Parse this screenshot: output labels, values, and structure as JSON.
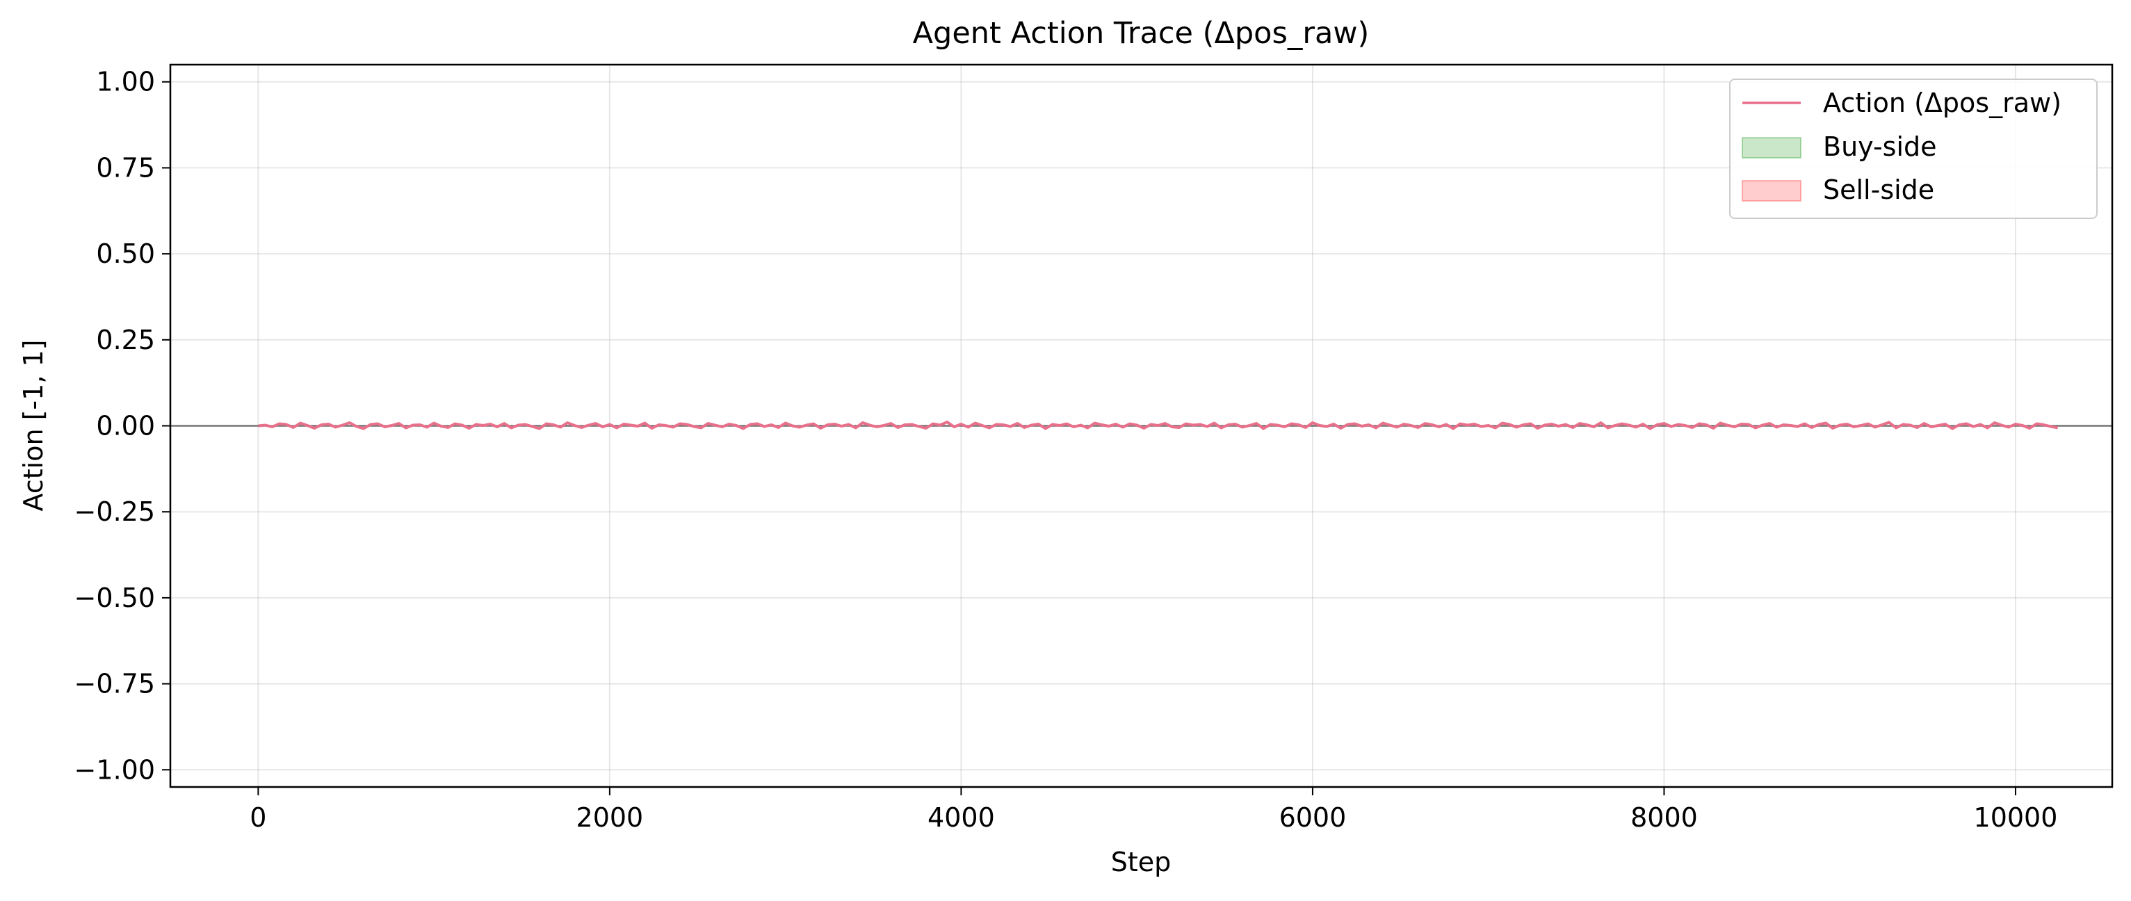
{
  "chart_data": {
    "type": "line",
    "title": "Agent Action Trace (Δpos_raw)",
    "xlabel": "Step",
    "ylabel": "Action [-1, 1]",
    "xlim": [
      -500,
      10550
    ],
    "ylim": [
      -1.05,
      1.05
    ],
    "x_ticks": [
      0,
      2000,
      4000,
      6000,
      8000,
      10000
    ],
    "x_tick_labels": [
      "0",
      "2000",
      "4000",
      "6000",
      "8000",
      "10000"
    ],
    "y_ticks": [
      1.0,
      0.75,
      0.5,
      0.25,
      0.0,
      -0.25,
      -0.5,
      -0.75,
      -1.0
    ],
    "y_tick_labels": [
      "1.00",
      "0.75",
      "0.50",
      "0.25",
      "0.00",
      "−0.25",
      "−0.50",
      "−0.75",
      "−1.00"
    ],
    "grid": true,
    "zero_line": 0.0,
    "legend": {
      "position": "top-right",
      "entries": [
        {
          "label": "Action (Δpos_raw)",
          "kind": "line",
          "color": "#e8708a"
        },
        {
          "label": "Buy-side",
          "kind": "patch",
          "color": "#2ca02c"
        },
        {
          "label": "Sell-side",
          "kind": "patch",
          "color": "#ff4d4d"
        }
      ]
    },
    "series": [
      {
        "name": "Action (Δpos_raw)",
        "color": "#e8708a",
        "x_start": 0,
        "x_step": 40,
        "values": [
          0.0,
          0.002,
          -0.003,
          0.006,
          0.004,
          -0.005,
          0.008,
          0.001,
          -0.007,
          0.003,
          0.005,
          -0.004,
          0.002,
          0.009,
          -0.002,
          -0.008,
          0.004,
          0.006,
          -0.003,
          0.001,
          0.007,
          -0.006,
          0.002,
          0.003,
          -0.004,
          0.008,
          -0.001,
          -0.005,
          0.006,
          0.002,
          -0.007,
          0.004,
          0.001,
          0.005,
          -0.003,
          0.007,
          -0.006,
          0.002,
          0.004,
          -0.002,
          -0.008,
          0.006,
          0.003,
          -0.004,
          0.009,
          0.001,
          -0.005,
          0.002,
          0.007,
          -0.003,
          0.004,
          -0.006,
          0.005,
          0.002,
          -0.001,
          0.008,
          -0.007,
          0.003,
          0.001,
          -0.004,
          0.006,
          0.004,
          -0.002,
          -0.006,
          0.007,
          0.002,
          -0.003,
          0.005,
          0.001,
          -0.008,
          0.004,
          0.006,
          -0.002,
          0.003,
          -0.005,
          0.008,
          0.0,
          -0.004,
          0.002,
          0.006,
          -0.007,
          0.003,
          0.005,
          -0.001,
          0.004,
          -0.006,
          0.009,
          0.002,
          -0.003,
          0.001,
          0.007,
          -0.005,
          0.003,
          0.004,
          -0.002,
          -0.007,
          0.006,
          0.002,
          0.011,
          -0.003,
          0.005,
          -0.004,
          0.008,
          0.001,
          -0.006,
          0.004,
          0.003,
          -0.002,
          0.007,
          -0.005,
          0.002,
          0.005,
          -0.008,
          0.004,
          0.001,
          0.006,
          -0.003,
          0.002,
          -0.006,
          0.008,
          0.003,
          -0.001,
          0.005,
          -0.004,
          0.006,
          0.002,
          -0.007,
          0.004,
          0.001,
          0.007,
          -0.003,
          -0.005,
          0.006,
          0.002,
          0.004,
          -0.002,
          0.008,
          -0.006,
          0.003,
          0.005,
          -0.004,
          0.001,
          0.007,
          -0.008,
          0.004,
          0.002,
          -0.003,
          0.006,
          0.003,
          -0.005,
          0.009,
          0.001,
          -0.002,
          0.005,
          -0.007,
          0.004,
          0.006,
          -0.001,
          0.003,
          -0.006,
          0.008,
          0.002,
          -0.004,
          0.005,
          0.001,
          -0.005,
          0.007,
          0.003,
          -0.003,
          0.004,
          -0.008,
          0.006,
          0.002,
          0.005,
          -0.002,
          0.001,
          -0.006,
          0.008,
          0.004,
          -0.004,
          0.003,
          0.006,
          -0.007,
          0.002,
          0.005,
          -0.001,
          0.004,
          -0.005,
          0.007,
          0.003,
          -0.003,
          0.009,
          -0.006,
          0.001,
          0.006,
          0.002,
          -0.004,
          0.005,
          -0.008,
          0.003,
          0.007,
          -0.002,
          0.004,
          0.001,
          -0.005,
          0.006,
          0.003,
          -0.007,
          0.008,
          0.002,
          -0.003,
          0.005,
          0.004,
          -0.006,
          0.002,
          0.007,
          -0.004,
          0.003,
          0.001,
          -0.002,
          0.006,
          -0.005,
          0.004,
          0.008,
          -0.007,
          0.002,
          0.005,
          -0.003,
          0.001,
          0.006,
          -0.004,
          0.003,
          0.01,
          -0.006,
          0.004,
          0.002,
          -0.005,
          0.007,
          -0.003,
          0.001,
          0.005,
          -0.008,
          0.003,
          0.006,
          -0.002,
          0.004,
          -0.006,
          0.009,
          0.002,
          -0.004,
          0.005,
          0.001,
          -0.007,
          0.006,
          0.003,
          -0.002,
          -0.006
        ]
      }
    ],
    "fills": [
      {
        "name": "Buy-side",
        "color": "#2ca02c"
      },
      {
        "name": "Sell-side",
        "color": "#ff4d4d"
      }
    ]
  }
}
